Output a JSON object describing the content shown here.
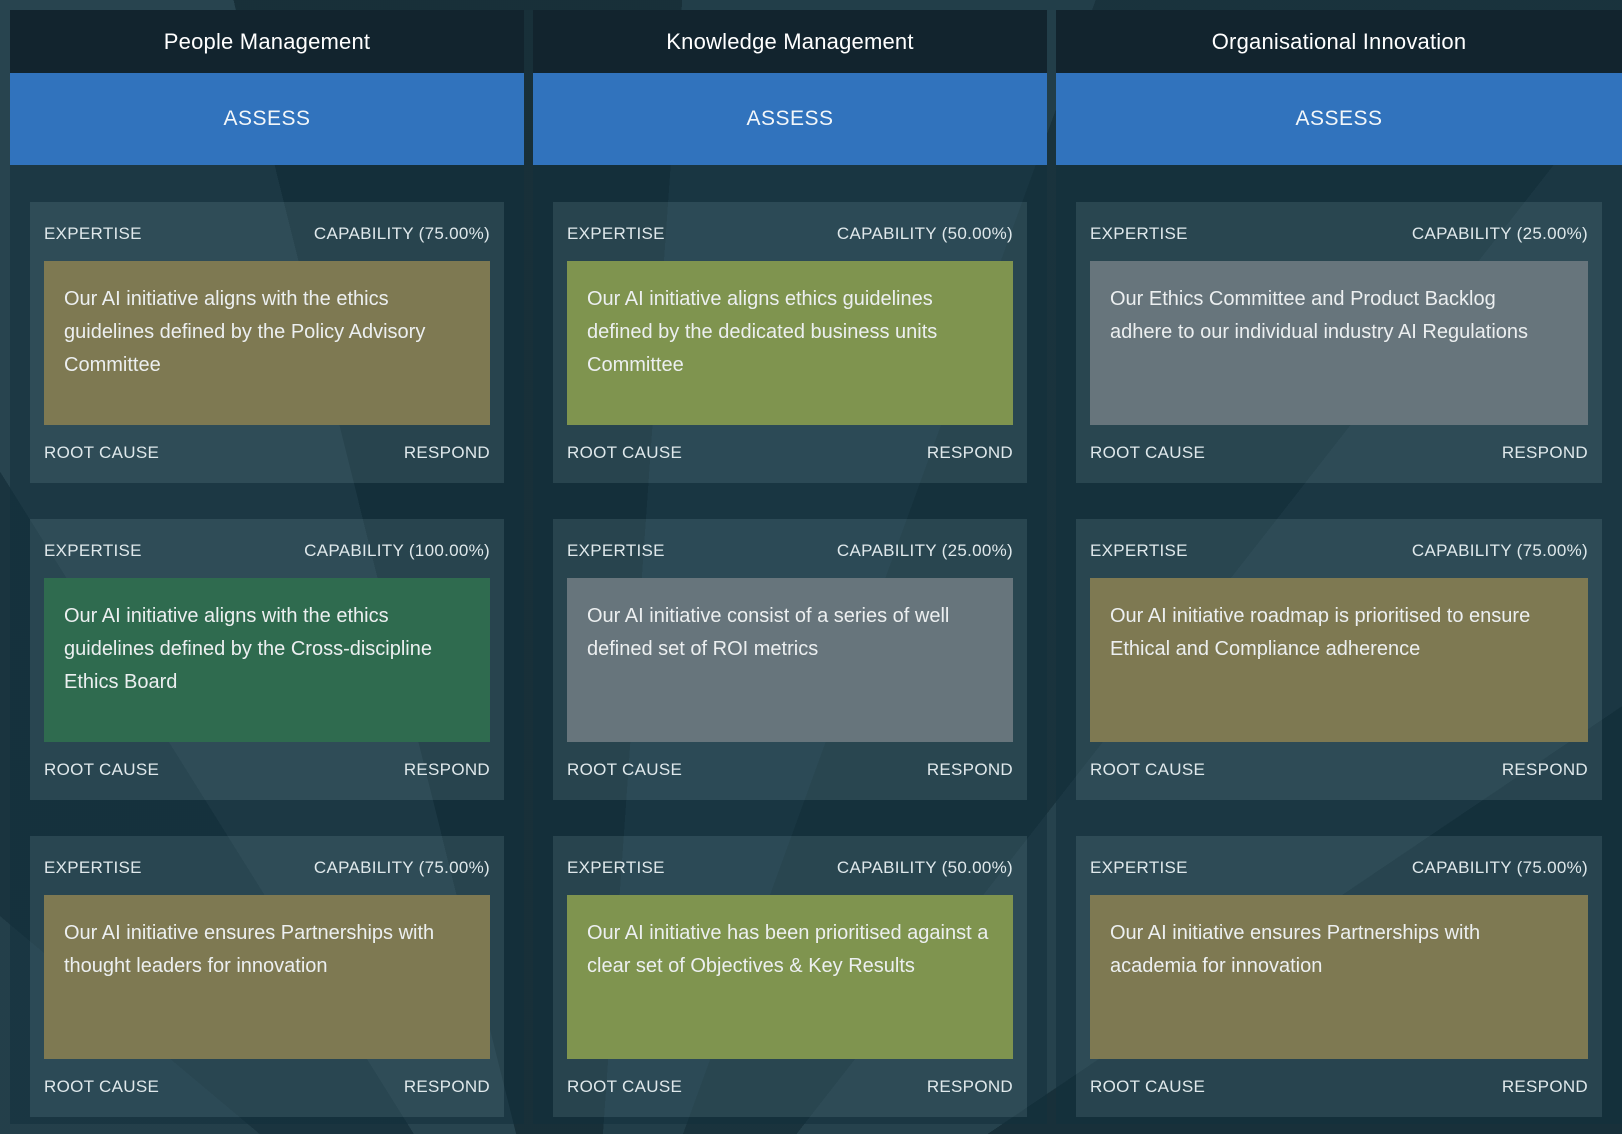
{
  "labels": {
    "assess": "ASSESS",
    "expertise": "EXPERTISE",
    "root_cause": "ROOT CAUSE",
    "respond": "RESPOND"
  },
  "colors": {
    "page_bg": "#1b3641",
    "header_bg": "#12242e",
    "assess_blue": "#3173bd",
    "column_bg": "rgba(18,48,60,0.55)",
    "card_bg": "rgba(190,222,232,0.12)",
    "capability_100": "#2f6b4f",
    "capability_75": "#7e7952",
    "capability_50": "#7f944f",
    "capability_25": "#67757c"
  },
  "columns": [
    {
      "title": "People Management",
      "cards": [
        {
          "capability": "CAPABILITY (75.00%)",
          "capability_pct": 75,
          "color": "#7e7952",
          "text": "Our AI initiative aligns with the ethics guidelines defined by the Policy Advisory Committee"
        },
        {
          "capability": "CAPABILITY (100.00%)",
          "capability_pct": 100,
          "color": "#2f6b4f",
          "text": "Our AI initiative aligns with the ethics guidelines defined by the Cross-discipline Ethics Board"
        },
        {
          "capability": "CAPABILITY (75.00%)",
          "capability_pct": 75,
          "color": "#7e7952",
          "text": "Our AI initiative ensures Partnerships with thought leaders for innovation"
        }
      ]
    },
    {
      "title": "Knowledge Management",
      "cards": [
        {
          "capability": "CAPABILITY (50.00%)",
          "capability_pct": 50,
          "color": "#7f944f",
          "text": "Our AI initiative aligns ethics guidelines defined by the dedicated business units Committee"
        },
        {
          "capability": "CAPABILITY (25.00%)",
          "capability_pct": 25,
          "color": "#67757c",
          "text": "Our AI initiative consist of a series of well defined set of ROI metrics"
        },
        {
          "capability": "CAPABILITY (50.00%)",
          "capability_pct": 50,
          "color": "#7f944f",
          "text": "Our AI initiative has been prioritised against a clear set of Objectives & Key Results"
        }
      ]
    },
    {
      "title": "Organisational Innovation",
      "cards": [
        {
          "capability": "CAPABILITY (25.00%)",
          "capability_pct": 25,
          "color": "#67757c",
          "text": "Our Ethics Committee and Product Backlog adhere to our individual industry AI Regulations"
        },
        {
          "capability": "CAPABILITY (75.00%)",
          "capability_pct": 75,
          "color": "#7e7952",
          "text": "Our AI initiative roadmap is prioritised to ensure Ethical and Compliance adherence"
        },
        {
          "capability": "CAPABILITY (75.00%)",
          "capability_pct": 75,
          "color": "#7e7952",
          "text": "Our AI initiative ensures Partnerships with academia for innovation"
        }
      ]
    }
  ]
}
